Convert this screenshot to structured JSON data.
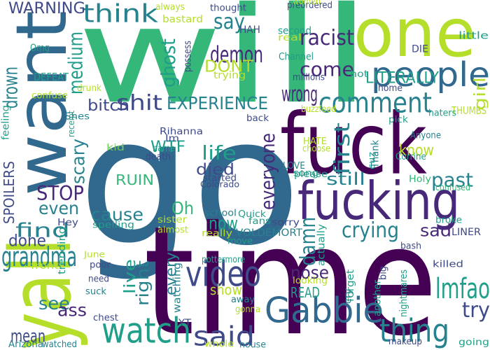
{
  "palette": {
    "deep_purple": "#440154",
    "purple": "#482878",
    "indigo": "#3e4a89",
    "blue": "#31688e",
    "teal_blue": "#26828e",
    "teal": "#1f9e89",
    "green_teal": "#35b779",
    "green": "#6ece58",
    "yellow_green": "#b5de2b",
    "background": "#ffffff"
  },
  "words": [
    {
      "text": "go"
    },
    {
      "text": "will"
    },
    {
      "text": "time"
    },
    {
      "text": "fuck"
    },
    {
      "text": "yall"
    },
    {
      "text": "one"
    },
    {
      "text": "want"
    },
    {
      "text": "fucking"
    },
    {
      "text": "people"
    },
    {
      "text": "watch"
    },
    {
      "text": "Gabbie"
    },
    {
      "text": "video"
    },
    {
      "text": "comment"
    },
    {
      "text": "thing"
    },
    {
      "text": "said"
    },
    {
      "text": "think"
    },
    {
      "text": "grandma"
    },
    {
      "text": "lmfao"
    },
    {
      "text": "demon"
    },
    {
      "text": "wrong"
    },
    {
      "text": "racist"
    },
    {
      "text": "shit"
    },
    {
      "text": "EXPERIENCE"
    },
    {
      "text": "crying"
    },
    {
      "text": "everyone"
    },
    {
      "text": "say"
    },
    {
      "text": "come"
    },
    {
      "text": "find"
    },
    {
      "text": "life"
    },
    {
      "text": "died"
    },
    {
      "text": "STOP"
    },
    {
      "text": "past"
    },
    {
      "text": "still"
    },
    {
      "text": "first"
    },
    {
      "text": "damn"
    },
    {
      "text": "medium"
    },
    {
      "text": "ghost"
    },
    {
      "text": "DONT"
    },
    {
      "text": "WARNING"
    },
    {
      "text": "LITERALLY"
    },
    {
      "text": "drown"
    },
    {
      "text": "bitch"
    },
    {
      "text": "scary"
    },
    {
      "text": "cause"
    },
    {
      "text": "RUIN"
    },
    {
      "text": "WTF"
    },
    {
      "text": "Oh"
    },
    {
      "text": "now"
    },
    {
      "text": "sad"
    },
    {
      "text": "try"
    },
    {
      "text": "even"
    },
    {
      "text": "done"
    },
    {
      "text": "nose"
    },
    {
      "text": "see"
    },
    {
      "text": "ass"
    },
    {
      "text": "mean"
    },
    {
      "text": "live"
    },
    {
      "text": "right"
    },
    {
      "text": "every"
    },
    {
      "text": "show"
    },
    {
      "text": "READ"
    },
    {
      "text": "know"
    },
    {
      "text": "girl"
    },
    {
      "text": "SPOILERS"
    },
    {
      "text": "DEFEAT"
    },
    {
      "text": "HAH"
    },
    {
      "text": "second"
    },
    {
      "text": "VOLDEMORT"
    },
    {
      "text": "THUMBS"
    },
    {
      "text": "LINER"
    },
    {
      "text": "DIE"
    },
    {
      "text": "little"
    },
    {
      "text": "Channel"
    },
    {
      "text": "millions"
    },
    {
      "text": "trying"
    },
    {
      "text": "Omg"
    },
    {
      "text": "bastard"
    },
    {
      "text": "always"
    },
    {
      "text": "thought"
    },
    {
      "text": "possess"
    },
    {
      "text": "real"
    },
    {
      "text": "preordered"
    },
    {
      "text": "women"
    },
    {
      "text": "drunk"
    },
    {
      "text": "confuse"
    },
    {
      "text": "home"
    },
    {
      "text": "hot"
    },
    {
      "text": "Shes"
    },
    {
      "text": "receipt"
    },
    {
      "text": "feeling"
    },
    {
      "text": "kid"
    },
    {
      "text": "Rihanna"
    },
    {
      "text": "back"
    },
    {
      "text": "Im"
    },
    {
      "text": "name"
    },
    {
      "text": "death"
    },
    {
      "text": "started"
    },
    {
      "text": "Colorado"
    },
    {
      "text": "buzzfeed"
    },
    {
      "text": "cuz"
    },
    {
      "text": "pick"
    },
    {
      "text": "haters"
    },
    {
      "text": "HATE"
    },
    {
      "text": "choose"
    },
    {
      "text": "Anyone"
    },
    {
      "text": "LOVE"
    },
    {
      "text": "song"
    },
    {
      "text": "please"
    },
    {
      "text": "Thank"
    },
    {
      "text": "Corrine"
    },
    {
      "text": "Holy"
    },
    {
      "text": "confused"
    },
    {
      "text": "Hey"
    },
    {
      "text": "sister"
    },
    {
      "text": "almost"
    },
    {
      "text": "spelling"
    },
    {
      "text": "school"
    },
    {
      "text": "Quick"
    },
    {
      "text": "fans"
    },
    {
      "text": "sorry"
    },
    {
      "text": "broke"
    },
    {
      "text": "trending"
    },
    {
      "text": "really"
    },
    {
      "text": "move"
    },
    {
      "text": "June"
    },
    {
      "text": "front"
    },
    {
      "text": "poor"
    },
    {
      "text": "pottermore"
    },
    {
      "text": "actually"
    },
    {
      "text": "bash"
    },
    {
      "text": "need"
    },
    {
      "text": "suck"
    },
    {
      "text": "watching"
    },
    {
      "text": "looking"
    },
    {
      "text": "killed"
    },
    {
      "text": "big"
    },
    {
      "text": "away"
    },
    {
      "text": "forget"
    },
    {
      "text": "nightmares"
    },
    {
      "text": "cry"
    },
    {
      "text": "gonna"
    },
    {
      "text": "chest"
    },
    {
      "text": "another"
    },
    {
      "text": "YT"
    },
    {
      "text": "Arizona"
    },
    {
      "text": "watched"
    },
    {
      "text": "whole"
    },
    {
      "text": "house"
    },
    {
      "text": "makeup"
    },
    {
      "text": "going"
    }
  ]
}
